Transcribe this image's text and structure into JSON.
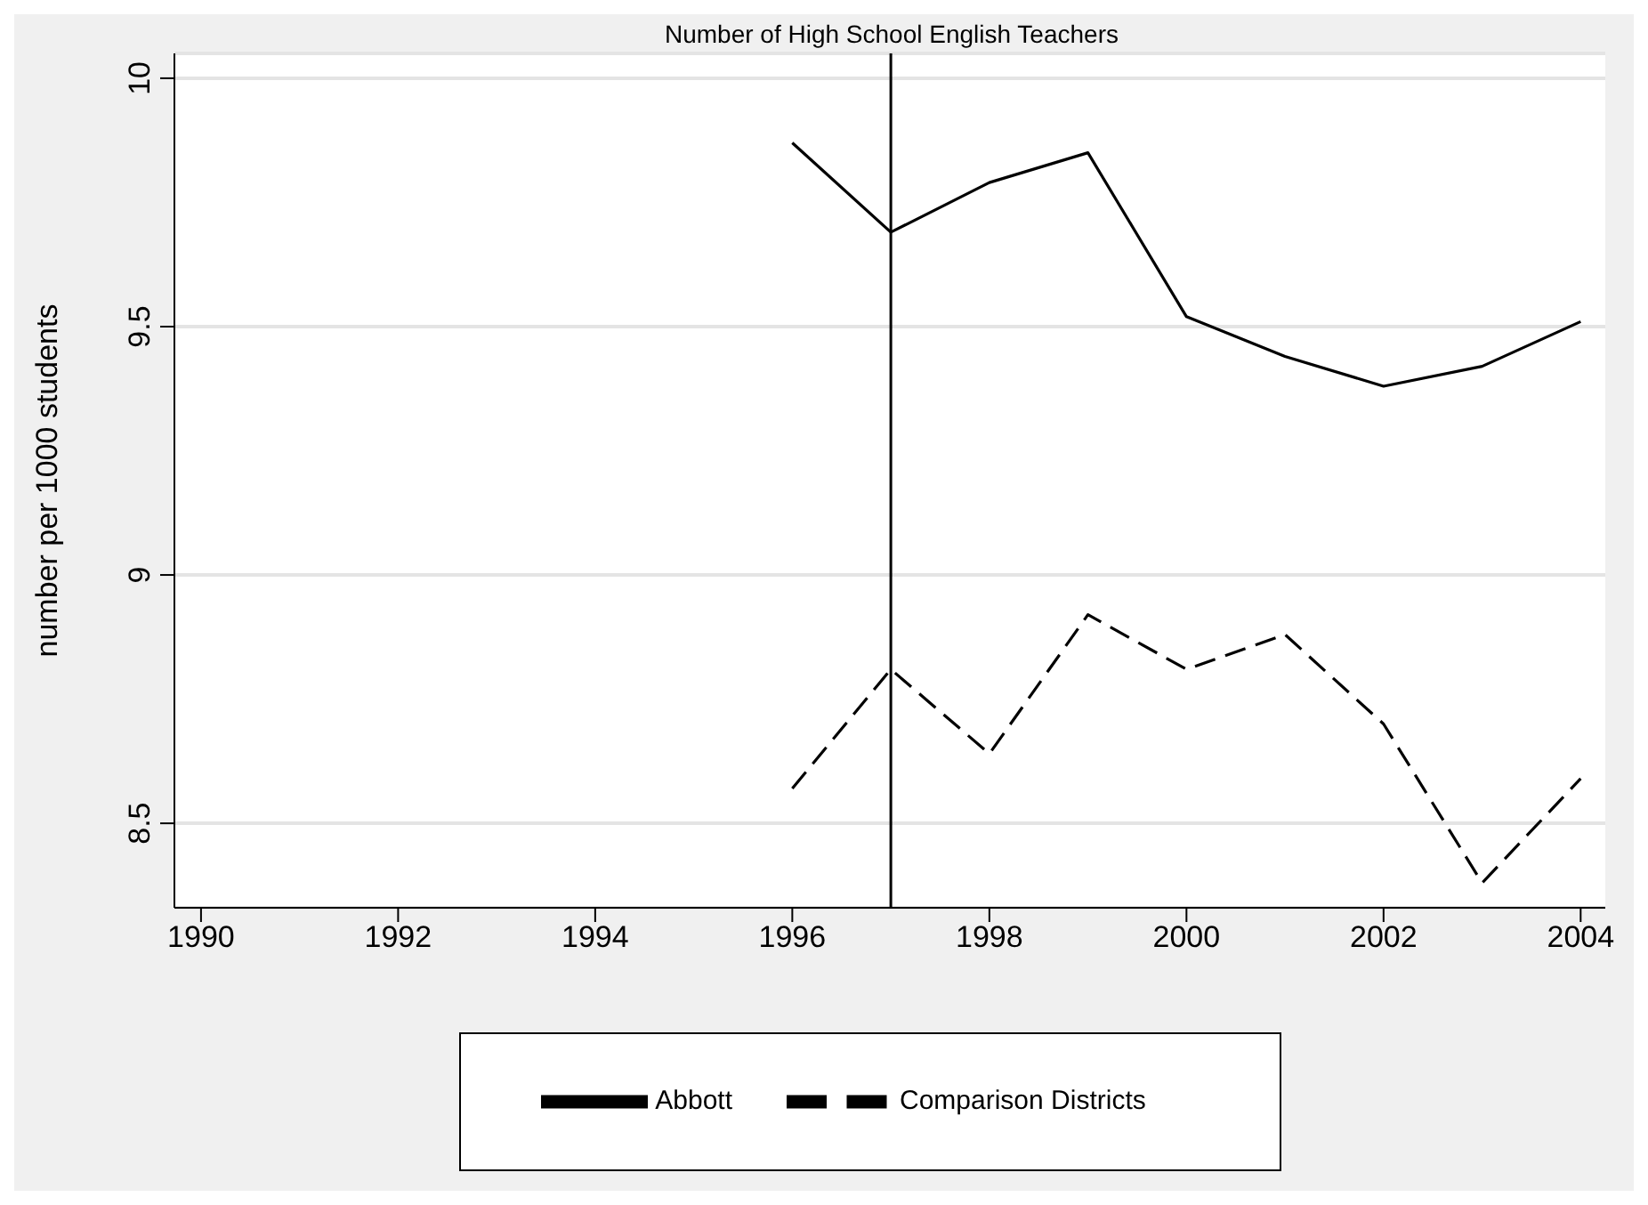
{
  "chart_data": {
    "type": "line",
    "title": "Number of High School English Teachers",
    "ylabel": "number per 1000 students",
    "x": [
      1996,
      1997,
      1998,
      1999,
      2000,
      2001,
      2002,
      2003,
      2004
    ],
    "series": [
      {
        "name": "Abbott",
        "color": "#000000",
        "line_style": "solid",
        "values": [
          9.87,
          9.69,
          9.79,
          9.85,
          9.52,
          9.44,
          9.38,
          9.42,
          9.51
        ]
      },
      {
        "name": "Comparison Districts",
        "color": "#000000",
        "line_style": "dashed",
        "values": [
          8.57,
          8.81,
          8.64,
          8.92,
          8.81,
          8.88,
          8.7,
          8.38,
          8.59
        ]
      }
    ],
    "xlim": [
      1989.73,
      2004.25
    ],
    "xticks": [
      1990,
      1992,
      1994,
      1996,
      1998,
      2000,
      2002,
      2004
    ],
    "ylim": [
      8.33,
      10.05
    ],
    "yticks": [
      {
        "value": 8.5,
        "label": "8.5"
      },
      {
        "value": 9,
        "label": "9"
      },
      {
        "value": 9.5,
        "label": "9.5"
      },
      {
        "value": 10,
        "label": "10"
      }
    ],
    "ref_lines": [
      {
        "axis": "x",
        "value": 1997,
        "color": "#000000"
      }
    ],
    "grid": "y",
    "legend": "bottom",
    "marker": "none"
  }
}
